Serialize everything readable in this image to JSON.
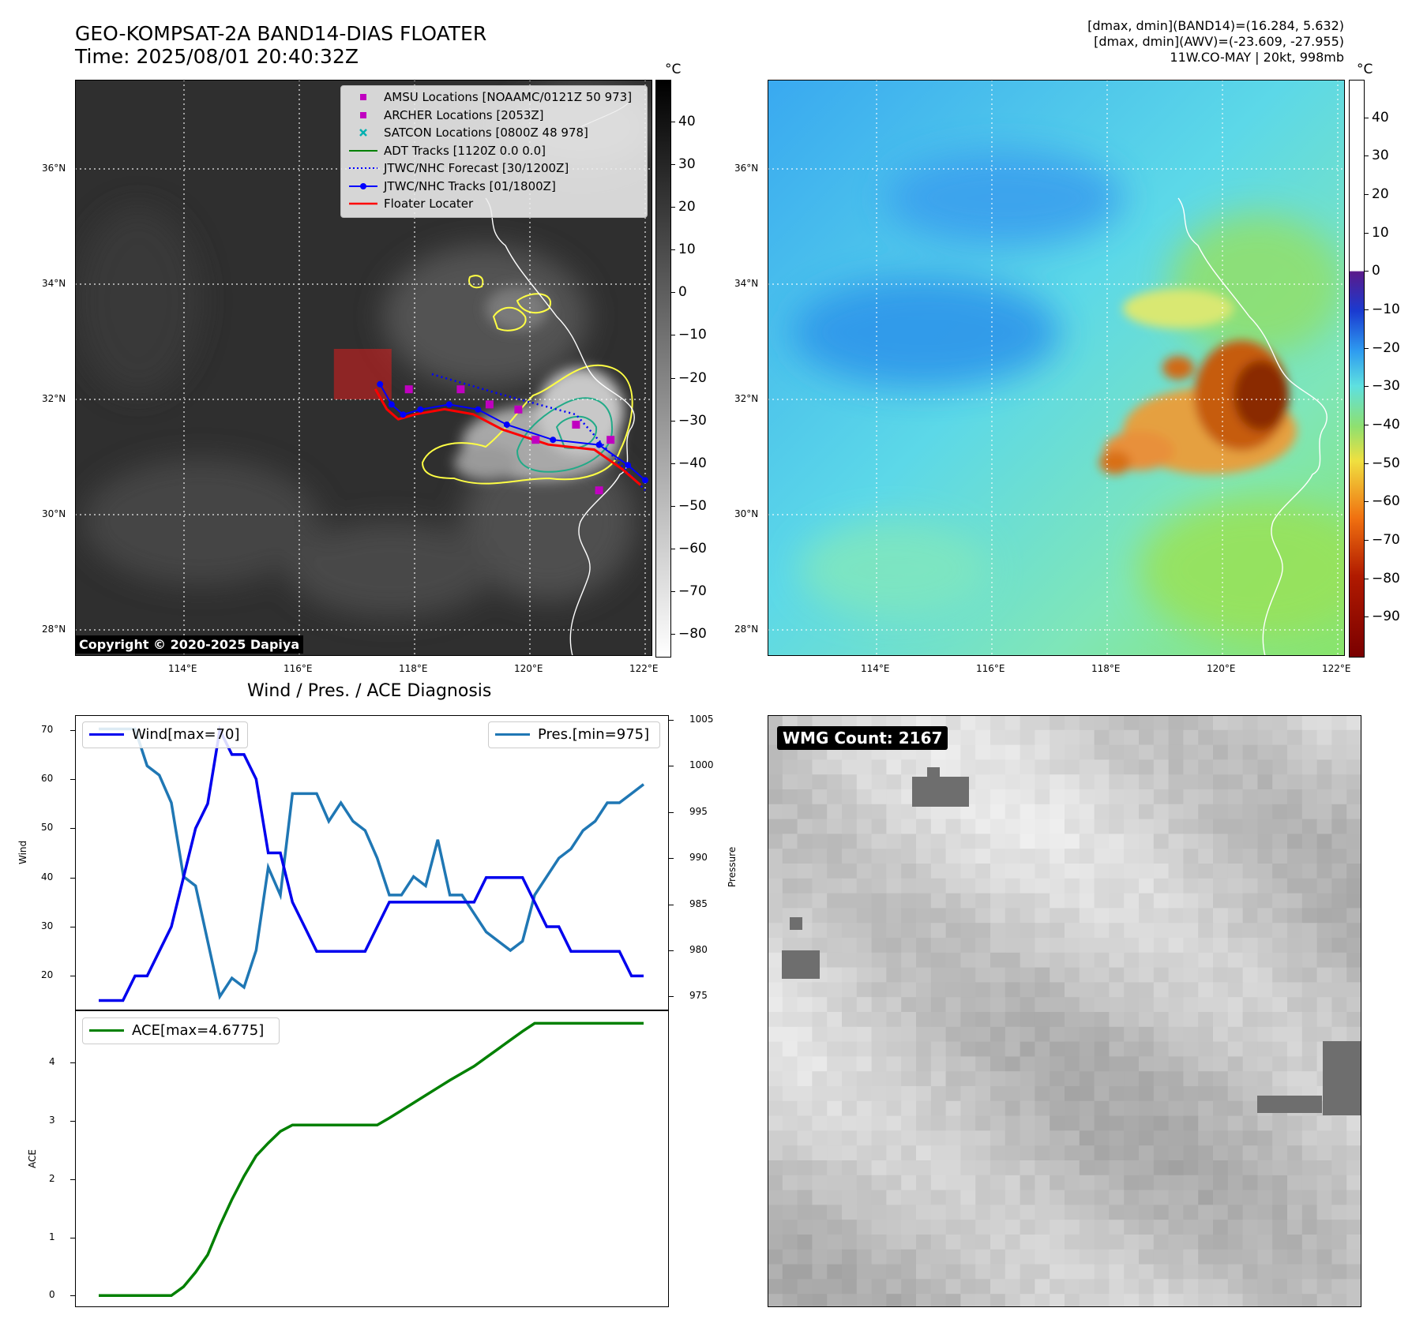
{
  "header": {
    "title_line1": "GEO-KOMPSAT-2A BAND14-DIAS FLOATER",
    "title_line2": "Time: 2025/08/01 20:40:32Z",
    "info_line1": "[dmax, dmin](BAND14)=(16.284, 5.632)",
    "info_line2": "[dmax, dmin](AWV)=(-23.609, -27.955)",
    "info_line3": "11W.CO-MAY | 20kt, 998mb"
  },
  "colors": {
    "wind": "#0000ee",
    "pressure": "#1f77b4",
    "ace": "#008000",
    "track": "#0000ff",
    "floater": "#ff0000",
    "adt": "#008000",
    "amsu": "#c000c0",
    "satcon": "#00b0b0"
  },
  "map": {
    "lon_labels": [
      "114°E",
      "116°E",
      "118°E",
      "120°E",
      "122°E"
    ],
    "lat_labels": [
      "36°N",
      "34°N",
      "32°N",
      "30°N",
      "28°N"
    ],
    "copyright": "Copyright © 2020-2025 Dapiya",
    "legend": [
      {
        "label": "AMSU Locations [NOAAMC/0121Z 50 973]",
        "icon": "magenta-square"
      },
      {
        "label": "ARCHER Locations [2053Z]",
        "icon": "magenta-square"
      },
      {
        "label": "SATCON Locations [0800Z 48 978]",
        "icon": "cyan-x"
      },
      {
        "label": "ADT Tracks [1120Z 0.0 0.0]",
        "icon": "green-line"
      },
      {
        "label": "JTWC/NHC Forecast [30/1200Z]",
        "icon": "blue-dotted-line"
      },
      {
        "label": "JTWC/NHC Tracks [01/1800Z]",
        "icon": "blue-line-dot"
      },
      {
        "label": "Floater Locater",
        "icon": "red-line"
      }
    ],
    "track_points": [
      [
        117.4,
        32.3
      ],
      [
        117.6,
        31.9
      ],
      [
        117.8,
        31.7
      ],
      [
        118.1,
        31.8
      ],
      [
        118.6,
        31.9
      ],
      [
        119.1,
        31.8
      ],
      [
        119.6,
        31.5
      ],
      [
        120.4,
        31.2
      ],
      [
        121.2,
        31.1
      ],
      [
        121.7,
        30.7
      ],
      [
        122.0,
        30.4
      ]
    ],
    "forecast_points": [
      [
        118.3,
        32.5
      ],
      [
        119.5,
        32.1
      ],
      [
        120.8,
        31.7
      ],
      [
        121.5,
        30.8
      ],
      [
        122.0,
        30.2
      ]
    ],
    "amsu_points": [
      [
        117.9,
        32.2
      ],
      [
        118.8,
        32.2
      ],
      [
        119.3,
        31.9
      ],
      [
        119.8,
        31.8
      ],
      [
        120.1,
        31.2
      ],
      [
        120.8,
        31.5
      ],
      [
        121.4,
        31.2
      ],
      [
        121.2,
        30.2
      ]
    ],
    "floater_box": {
      "lon_min": 116.6,
      "lon_max": 117.6,
      "lat_min": 32.0,
      "lat_max": 33.0
    }
  },
  "colorbar_ir": {
    "unit": "°C",
    "ticks": [
      "40",
      "30",
      "20",
      "10",
      "0",
      "−10",
      "−20",
      "−30",
      "−40",
      "−50",
      "−60",
      "−70",
      "−80"
    ],
    "range": [
      -85,
      50
    ]
  },
  "colorbar_wv": {
    "unit": "°C",
    "ticks": [
      "40",
      "30",
      "20",
      "10",
      "0",
      "−10",
      "−20",
      "−30",
      "−40",
      "−50",
      "−60",
      "−70",
      "−80",
      "−90"
    ],
    "range": [
      -100,
      50
    ]
  },
  "chart_data": [
    {
      "type": "line",
      "title": "Wind / Pres. / ACE Diagnosis",
      "ylabel": "Wind",
      "y2label": "Pressure",
      "ylim": [
        13,
        73
      ],
      "y2lim": [
        973.5,
        1005.5
      ],
      "yticks": [
        "70",
        "60",
        "50",
        "40",
        "30",
        "20"
      ],
      "y2ticks": [
        "1005",
        "1000",
        "995",
        "990",
        "985",
        "980",
        "975"
      ],
      "series": [
        {
          "name": "Wind[max=70]",
          "axis": "left",
          "values": [
            15,
            15,
            15,
            20,
            20,
            25,
            30,
            40,
            50,
            55,
            70,
            65,
            65,
            60,
            45,
            45,
            35,
            30,
            25,
            25,
            25,
            25,
            25,
            30,
            35,
            35,
            35,
            35,
            35,
            35,
            35,
            35,
            40,
            40,
            40,
            40,
            35,
            30,
            30,
            25,
            25,
            25,
            25,
            25,
            20,
            20
          ]
        },
        {
          "name": "Pres.[min=975]",
          "axis": "right",
          "values": [
            1004,
            1004,
            1004,
            1004,
            1000,
            999,
            996,
            988,
            987,
            981,
            975,
            977,
            976,
            980,
            989,
            986,
            997,
            997,
            997,
            994,
            996,
            994,
            993,
            990,
            986,
            986,
            988,
            987,
            992,
            986,
            986,
            984,
            982,
            981,
            980,
            981,
            986,
            988,
            990,
            991,
            993,
            994,
            996,
            996,
            997,
            998
          ]
        }
      ]
    },
    {
      "type": "line",
      "ylabel": "ACE",
      "ylim": [
        -0.2,
        4.9
      ],
      "yticks": [
        "4",
        "3",
        "2",
        "1",
        "0"
      ],
      "series": [
        {
          "name": "ACE[max=4.6775]",
          "values": [
            0,
            0,
            0,
            0,
            0,
            0,
            0,
            0.15,
            0.4,
            0.7,
            1.2,
            1.65,
            2.05,
            2.4,
            2.62,
            2.82,
            2.93,
            2.93,
            2.93,
            2.93,
            2.93,
            2.93,
            2.93,
            2.93,
            3.05,
            3.18,
            3.31,
            3.44,
            3.57,
            3.7,
            3.82,
            3.94,
            4.09,
            4.24,
            4.39,
            4.54,
            4.6775,
            4.6775,
            4.6775,
            4.6775,
            4.6775,
            4.6775,
            4.6775,
            4.6775,
            4.6775,
            4.6775
          ]
        }
      ]
    }
  ],
  "wmg": {
    "label": "WMG Count: 2167"
  }
}
